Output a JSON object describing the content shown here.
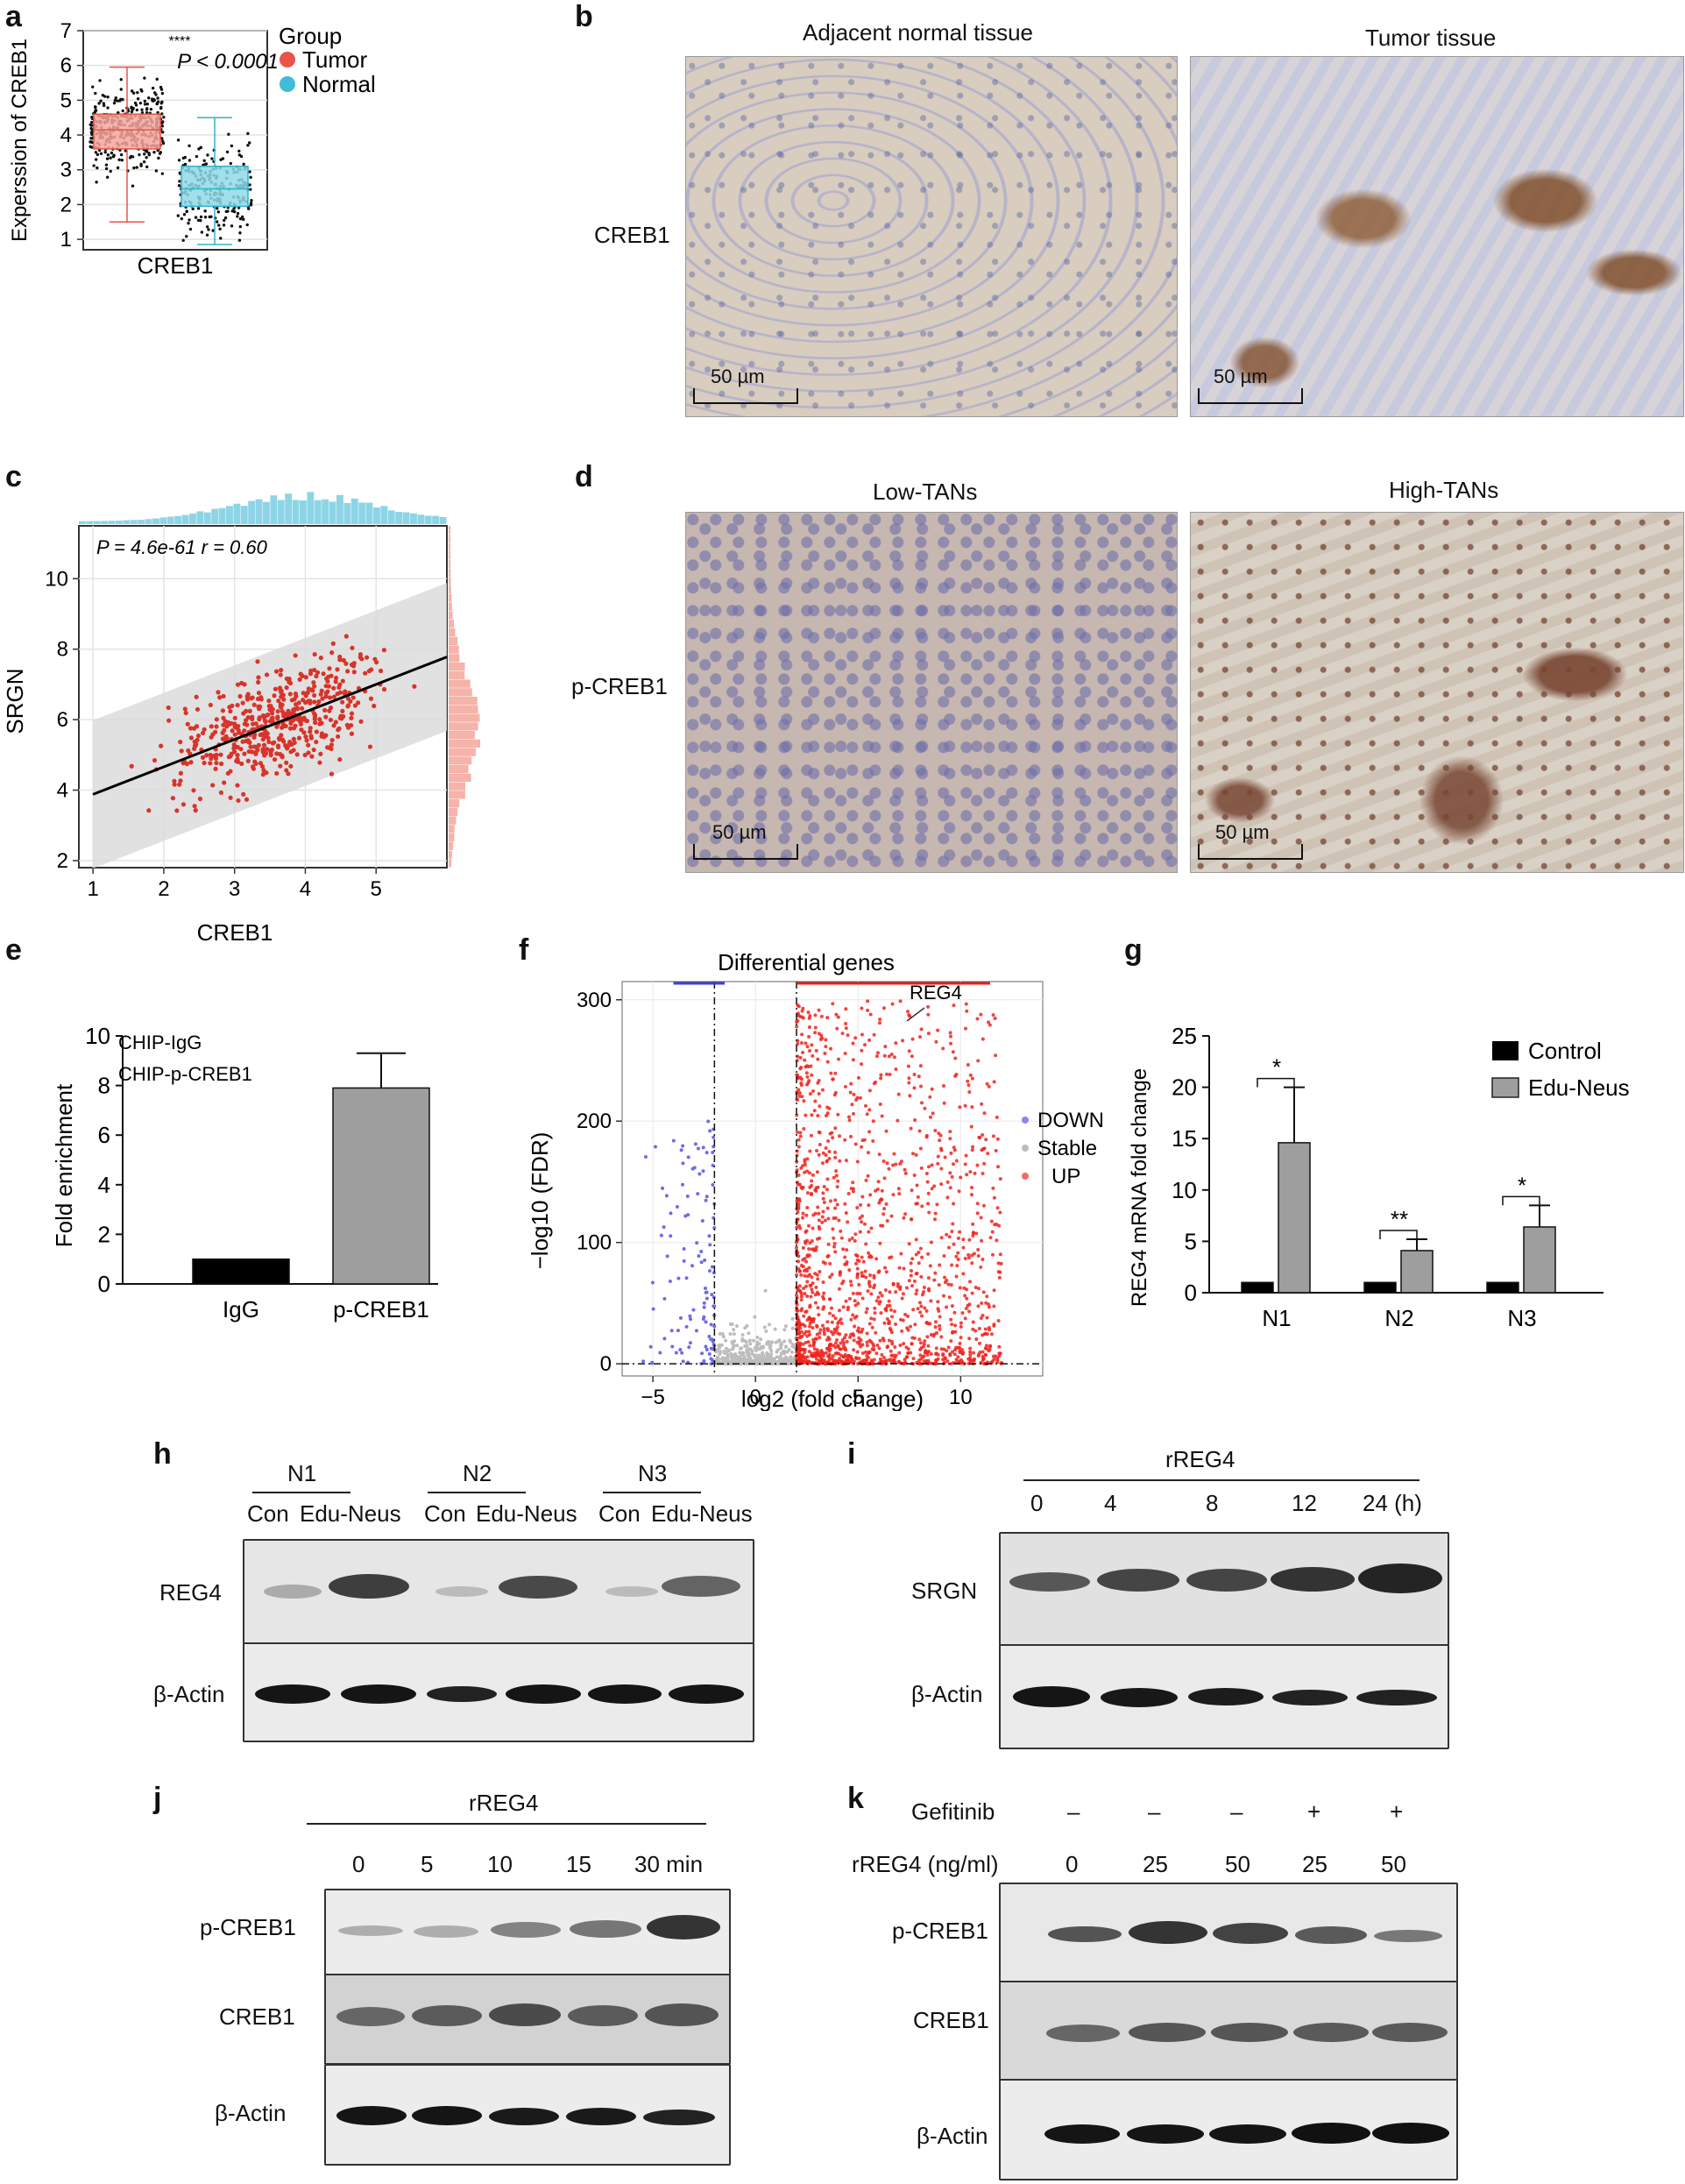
{
  "panels": {
    "a": {
      "label": "a",
      "ylabel": "Experssion of CREB1",
      "xlabel": "CREB1",
      "sig": "****",
      "p_text": "P < 0.0001",
      "legend_title": "Group",
      "legend": [
        {
          "name": "Tumor",
          "color": "#e8544a"
        },
        {
          "name": "Normal",
          "color": "#42bcd6"
        }
      ],
      "yticks": [
        "1",
        "2",
        "3",
        "4",
        "5",
        "6",
        "7"
      ]
    },
    "b": {
      "label": "b",
      "col1": "Adjacent normal tissue",
      "col2": "Tumor tissue",
      "row": "CREB1",
      "scale": "50 µm"
    },
    "c": {
      "label": "c",
      "stat": "P = 4.6e-61  r = 0.60",
      "xlabel": "CREB1",
      "ylabel": "SRGN",
      "xticks": [
        "1",
        "2",
        "3",
        "4",
        "5"
      ],
      "yticks": [
        "2",
        "4",
        "6",
        "8",
        "10"
      ]
    },
    "d": {
      "label": "d",
      "col1": "Low-TANs",
      "col2": "High-TANs",
      "row": "p-CREB1",
      "scale": "50 µm"
    },
    "e": {
      "label": "e",
      "ylabel": "Fold enrichment",
      "legend1": "CHIP-IgG",
      "legend2": "CHIP-p-CREB1",
      "yticks": [
        "0",
        "2",
        "4",
        "6",
        "8",
        "10"
      ]
    },
    "f": {
      "label": "f",
      "title": "Differential genes",
      "xlabel": "log2 (fold change)",
      "ylabel": "−log10 (FDR)",
      "annot": "REG4",
      "legend": [
        "DOWN",
        "Stable",
        "UP"
      ],
      "xticks": [
        "−5",
        "0",
        "5",
        "10"
      ],
      "yticks": [
        "0",
        "100",
        "200",
        "300"
      ]
    },
    "g": {
      "label": "g",
      "ylabel": "REG4 mRNA fold change",
      "legend1": "Control",
      "legend2": "Edu-Neus",
      "yticks": [
        "0",
        "5",
        "10",
        "15",
        "20",
        "25"
      ],
      "groups": [
        "N1",
        "N2",
        "N3"
      ],
      "sig": [
        "*",
        "**",
        "*"
      ]
    },
    "h": {
      "label": "h",
      "groups": [
        "N1",
        "N2",
        "N3"
      ],
      "lanes": [
        "Con",
        "Edu-Neus",
        "Con",
        "Edu-Neus",
        "Con",
        "Edu-Neus"
      ],
      "rows": [
        "REG4",
        "β-Actin"
      ]
    },
    "i": {
      "label": "i",
      "treat": "rREG4",
      "times": [
        "0",
        "4",
        "8",
        "12",
        "24 (h)"
      ],
      "rows": [
        "SRGN",
        "β-Actin"
      ]
    },
    "j": {
      "label": "j",
      "treat": "rREG4",
      "times": [
        "0",
        "5",
        "10",
        "15",
        "30 min"
      ],
      "rows": [
        "p-CREB1",
        "CREB1",
        "β-Actin"
      ]
    },
    "k": {
      "label": "k",
      "row1": "Gefitinib",
      "row2": "rREG4 (ng/ml)",
      "gef": [
        "–",
        "–",
        "–",
        "+",
        "+"
      ],
      "conc": [
        "0",
        "25",
        "50",
        "25",
        "50"
      ],
      "rows": [
        "p-CREB1",
        "CREB1",
        "β-Actin"
      ]
    }
  },
  "chart_data": [
    {
      "type": "box",
      "panel": "a",
      "categories": [
        "Tumor",
        "Normal"
      ],
      "stats": [
        {
          "min": 1.5,
          "q1": 3.6,
          "median": 4.15,
          "q3": 4.6,
          "max": 5.95
        },
        {
          "min": 0.85,
          "q1": 1.95,
          "median": 2.45,
          "q3": 3.1,
          "max": 4.5
        }
      ],
      "ylim": [
        0.7,
        7
      ]
    },
    {
      "type": "scatter",
      "panel": "c",
      "fit": {
        "slope": 0.78,
        "intercept": 3.1
      },
      "xlim": [
        0.8,
        6.0
      ],
      "ylim": [
        1.8,
        11.5
      ]
    },
    {
      "type": "bar",
      "panel": "e",
      "categories": [
        "IgG",
        "p-CREB1"
      ],
      "values": [
        1.0,
        7.9
      ],
      "errors": [
        0,
        1.4
      ],
      "ylim": [
        0,
        10
      ]
    },
    {
      "type": "scatter",
      "panel": "f",
      "xlim": [
        -6.5,
        14
      ],
      "ylim": [
        -10,
        315
      ],
      "thresholds": {
        "x": [
          -2,
          2
        ],
        "y": 0
      }
    },
    {
      "type": "bar",
      "panel": "g",
      "categories": [
        "N1",
        "N2",
        "N3"
      ],
      "series": [
        {
          "name": "Control",
          "values": [
            1,
            1,
            1
          ],
          "errors": [
            0,
            0,
            0
          ]
        },
        {
          "name": "Edu-Neus",
          "values": [
            14.6,
            4.1,
            6.4
          ],
          "errors": [
            5.4,
            1.1,
            2.1
          ]
        }
      ],
      "ylim": [
        0,
        25
      ]
    }
  ]
}
